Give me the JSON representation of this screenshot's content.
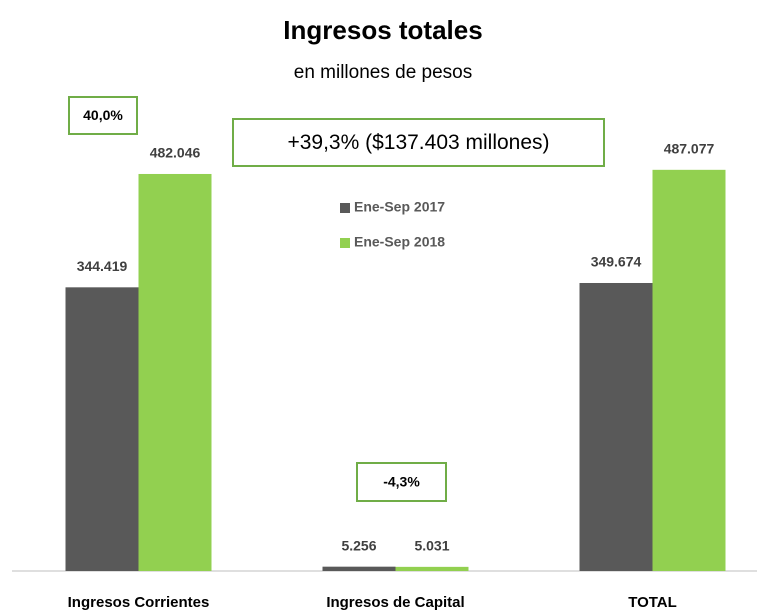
{
  "chart_data": {
    "type": "bar",
    "title": "Ingresos totales",
    "subtitle": "en millones de pesos",
    "categories": [
      "Ingresos Corrientes",
      "Ingresos de Capital",
      "TOTAL"
    ],
    "series": [
      {
        "name": "Ene-Sep 2017",
        "color": "#595959",
        "values": [
          344419,
          5256,
          349674
        ],
        "value_labels": [
          "344.419",
          "5.256",
          "349.674"
        ]
      },
      {
        "name": "Ene-Sep 2018",
        "color": "#92d050",
        "values": [
          482046,
          5031,
          487077
        ],
        "value_labels": [
          "482.046",
          "5.031",
          "487.077"
        ]
      }
    ],
    "ylim": [
      0,
      550000
    ],
    "annotations": [
      {
        "text": "40,0%"
      },
      {
        "text": "+39,3% ($137.403 millones)"
      },
      {
        "text": "-4,3%"
      }
    ]
  }
}
